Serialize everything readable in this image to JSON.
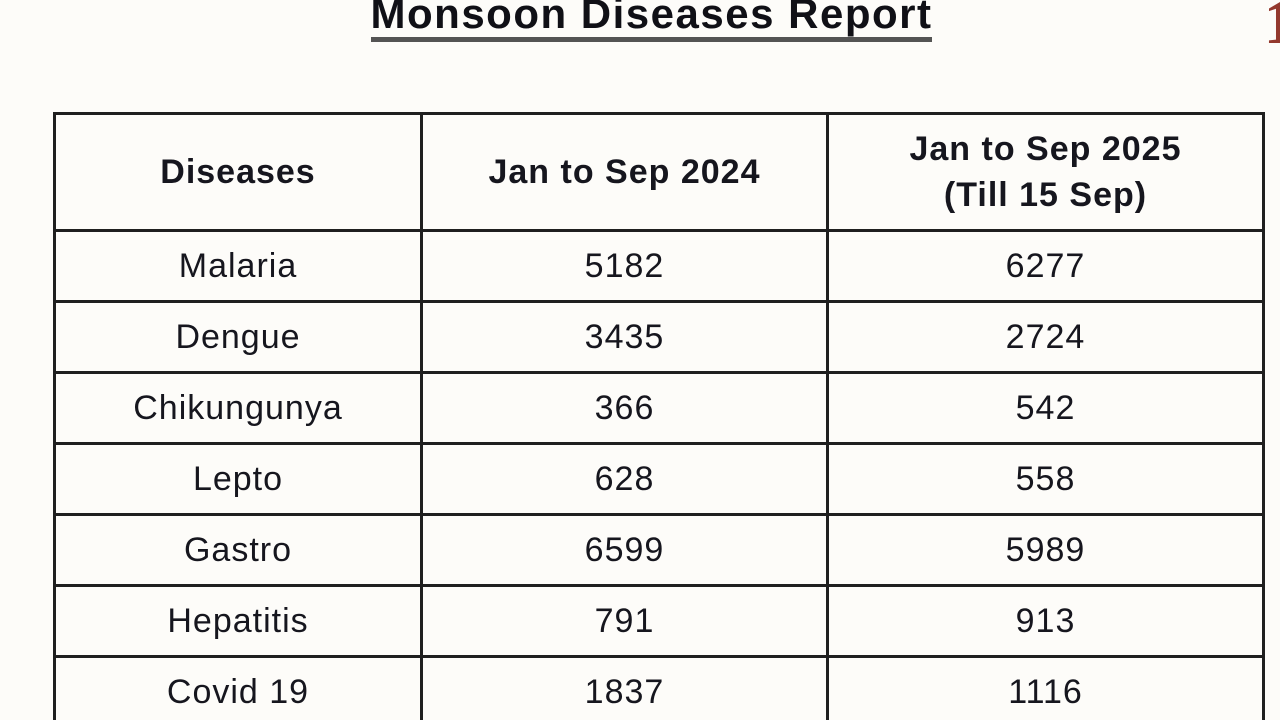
{
  "title": "Monsoon Diseases Report",
  "page_number": "1",
  "table": {
    "headers": {
      "diseases": "Diseases",
      "period_2024": "Jan to Sep 2024",
      "period_2025": "Jan to Sep 2025\n(Till 15 Sep)"
    },
    "rows": [
      {
        "disease": "Malaria",
        "count_2024": "5182",
        "count_2025": "6277"
      },
      {
        "disease": "Dengue",
        "count_2024": "3435",
        "count_2025": "2724"
      },
      {
        "disease": "Chikungunya",
        "count_2024": "366",
        "count_2025": "542"
      },
      {
        "disease": "Lepto",
        "count_2024": "628",
        "count_2025": "558"
      },
      {
        "disease": "Gastro",
        "count_2024": "6599",
        "count_2025": "5989"
      },
      {
        "disease": "Hepatitis",
        "count_2024": "791",
        "count_2025": "913"
      },
      {
        "disease": "Covid 19",
        "count_2024": "1837",
        "count_2025": "1116"
      }
    ]
  },
  "colors": {
    "page_background": "#fdfcf9",
    "table_border": "#1f1f1f",
    "text": "#16161e",
    "title_underline": "#545454",
    "page_number_red": "#93392e"
  }
}
